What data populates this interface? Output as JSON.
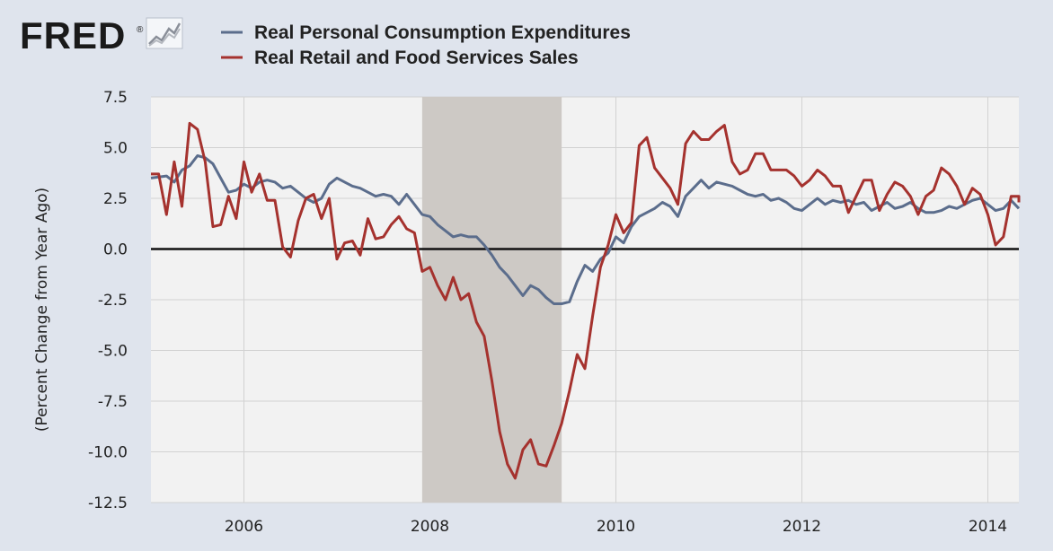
{
  "logo": {
    "text": "FRED",
    "trademark": "®",
    "icon": "fred-chart-icon"
  },
  "chart_data": {
    "type": "line",
    "ylabel": "(Percent Change from Year Ago)",
    "xlim": [
      "2005-01",
      "2014-05"
    ],
    "ylim": [
      -12.5,
      7.5
    ],
    "yticks": [
      7.5,
      5.0,
      2.5,
      0.0,
      -2.5,
      -5.0,
      -7.5,
      -10.0,
      -12.5
    ],
    "ytick_labels": [
      "7.5",
      "5.0",
      "2.5",
      "0.0",
      "-2.5",
      "-5.0",
      "-7.5",
      "-10.0",
      "-12.5"
    ],
    "xticks": [
      "2006-01",
      "2008-01",
      "2010-01",
      "2012-01",
      "2014-01"
    ],
    "xtick_labels": [
      "2006",
      "2008",
      "2010",
      "2012",
      "2014"
    ],
    "grid": true,
    "zero_line": true,
    "recession": {
      "start": "2007-12",
      "end": "2009-06",
      "color": "#cdc9c5"
    },
    "legend_position": "top",
    "series": [
      {
        "name": "Real Personal Consumption Expenditures",
        "color": "#5b6d8c",
        "points": [
          [
            "2005-01",
            3.5
          ],
          [
            "2005-03",
            3.6
          ],
          [
            "2005-04",
            3.3
          ],
          [
            "2005-05",
            3.9
          ],
          [
            "2005-06",
            4.1
          ],
          [
            "2005-07",
            4.6
          ],
          [
            "2005-08",
            4.5
          ],
          [
            "2005-09",
            4.2
          ],
          [
            "2005-10",
            3.5
          ],
          [
            "2005-11",
            2.8
          ],
          [
            "2005-12",
            2.9
          ],
          [
            "2006-01",
            3.2
          ],
          [
            "2006-02",
            3.0
          ],
          [
            "2006-03",
            3.3
          ],
          [
            "2006-04",
            3.4
          ],
          [
            "2006-05",
            3.3
          ],
          [
            "2006-06",
            3.0
          ],
          [
            "2006-07",
            3.1
          ],
          [
            "2006-08",
            2.8
          ],
          [
            "2006-09",
            2.5
          ],
          [
            "2006-10",
            2.3
          ],
          [
            "2006-11",
            2.5
          ],
          [
            "2006-12",
            3.2
          ],
          [
            "2007-01",
            3.5
          ],
          [
            "2007-02",
            3.3
          ],
          [
            "2007-03",
            3.1
          ],
          [
            "2007-04",
            3.0
          ],
          [
            "2007-05",
            2.8
          ],
          [
            "2007-06",
            2.6
          ],
          [
            "2007-07",
            2.7
          ],
          [
            "2007-08",
            2.6
          ],
          [
            "2007-09",
            2.2
          ],
          [
            "2007-10",
            2.7
          ],
          [
            "2007-11",
            2.2
          ],
          [
            "2007-12",
            1.7
          ],
          [
            "2008-01",
            1.6
          ],
          [
            "2008-02",
            1.2
          ],
          [
            "2008-03",
            0.9
          ],
          [
            "2008-04",
            0.6
          ],
          [
            "2008-05",
            0.7
          ],
          [
            "2008-06",
            0.6
          ],
          [
            "2008-07",
            0.6
          ],
          [
            "2008-08",
            0.2
          ],
          [
            "2008-09",
            -0.3
          ],
          [
            "2008-10",
            -0.9
          ],
          [
            "2008-11",
            -1.3
          ],
          [
            "2008-12",
            -1.8
          ],
          [
            "2009-01",
            -2.3
          ],
          [
            "2009-02",
            -1.8
          ],
          [
            "2009-03",
            -2.0
          ],
          [
            "2009-04",
            -2.4
          ],
          [
            "2009-05",
            -2.7
          ],
          [
            "2009-06",
            -2.7
          ],
          [
            "2009-07",
            -2.6
          ],
          [
            "2009-08",
            -1.6
          ],
          [
            "2009-09",
            -0.8
          ],
          [
            "2009-10",
            -1.1
          ],
          [
            "2009-11",
            -0.5
          ],
          [
            "2009-12",
            -0.2
          ],
          [
            "2010-01",
            0.6
          ],
          [
            "2010-02",
            0.3
          ],
          [
            "2010-03",
            1.1
          ],
          [
            "2010-04",
            1.6
          ],
          [
            "2010-05",
            1.8
          ],
          [
            "2010-06",
            2.0
          ],
          [
            "2010-07",
            2.3
          ],
          [
            "2010-08",
            2.1
          ],
          [
            "2010-09",
            1.6
          ],
          [
            "2010-10",
            2.6
          ],
          [
            "2010-11",
            3.0
          ],
          [
            "2010-12",
            3.4
          ],
          [
            "2011-01",
            3.0
          ],
          [
            "2011-02",
            3.3
          ],
          [
            "2011-03",
            3.2
          ],
          [
            "2011-04",
            3.1
          ],
          [
            "2011-05",
            2.9
          ],
          [
            "2011-06",
            2.7
          ],
          [
            "2011-07",
            2.6
          ],
          [
            "2011-08",
            2.7
          ],
          [
            "2011-09",
            2.4
          ],
          [
            "2011-10",
            2.5
          ],
          [
            "2011-11",
            2.3
          ],
          [
            "2011-12",
            2.0
          ],
          [
            "2012-01",
            1.9
          ],
          [
            "2012-02",
            2.2
          ],
          [
            "2012-03",
            2.5
          ],
          [
            "2012-04",
            2.2
          ],
          [
            "2012-05",
            2.4
          ],
          [
            "2012-06",
            2.3
          ],
          [
            "2012-07",
            2.4
          ],
          [
            "2012-08",
            2.2
          ],
          [
            "2012-09",
            2.3
          ],
          [
            "2012-10",
            1.9
          ],
          [
            "2012-11",
            2.1
          ],
          [
            "2012-12",
            2.3
          ],
          [
            "2013-01",
            2.0
          ],
          [
            "2013-02",
            2.1
          ],
          [
            "2013-03",
            2.3
          ],
          [
            "2013-04",
            2.0
          ],
          [
            "2013-05",
            1.8
          ],
          [
            "2013-06",
            1.8
          ],
          [
            "2013-07",
            1.9
          ],
          [
            "2013-08",
            2.1
          ],
          [
            "2013-09",
            2.0
          ],
          [
            "2013-10",
            2.2
          ],
          [
            "2013-11",
            2.4
          ],
          [
            "2013-12",
            2.5
          ],
          [
            "2014-01",
            2.2
          ],
          [
            "2014-02",
            1.9
          ],
          [
            "2014-03",
            2.0
          ],
          [
            "2014-04",
            2.4
          ],
          [
            "2014-05",
            2.0
          ]
        ]
      },
      {
        "name": "Real Retail and Food Services Sales",
        "color": "#a5322e",
        "points": [
          [
            "2005-01",
            3.7
          ],
          [
            "2005-02",
            3.7
          ],
          [
            "2005-03",
            1.7
          ],
          [
            "2005-04",
            4.3
          ],
          [
            "2005-05",
            2.1
          ],
          [
            "2005-06",
            6.2
          ],
          [
            "2005-07",
            5.9
          ],
          [
            "2005-08",
            4.3
          ],
          [
            "2005-09",
            1.1
          ],
          [
            "2005-10",
            1.2
          ],
          [
            "2005-11",
            2.6
          ],
          [
            "2005-12",
            1.5
          ],
          [
            "2006-01",
            4.3
          ],
          [
            "2006-02",
            2.8
          ],
          [
            "2006-03",
            3.7
          ],
          [
            "2006-04",
            2.4
          ],
          [
            "2006-05",
            2.4
          ],
          [
            "2006-06",
            0.1
          ],
          [
            "2006-07",
            -0.4
          ],
          [
            "2006-08",
            1.4
          ],
          [
            "2006-09",
            2.5
          ],
          [
            "2006-10",
            2.7
          ],
          [
            "2006-11",
            1.5
          ],
          [
            "2006-12",
            2.5
          ],
          [
            "2007-01",
            -0.5
          ],
          [
            "2007-02",
            0.3
          ],
          [
            "2007-03",
            0.4
          ],
          [
            "2007-04",
            -0.3
          ],
          [
            "2007-05",
            1.5
          ],
          [
            "2007-06",
            0.5
          ],
          [
            "2007-07",
            0.6
          ],
          [
            "2007-08",
            1.2
          ],
          [
            "2007-09",
            1.6
          ],
          [
            "2007-10",
            1.0
          ],
          [
            "2007-11",
            0.8
          ],
          [
            "2007-12",
            -1.1
          ],
          [
            "2008-01",
            -0.9
          ],
          [
            "2008-02",
            -1.8
          ],
          [
            "2008-03",
            -2.5
          ],
          [
            "2008-04",
            -1.4
          ],
          [
            "2008-05",
            -2.5
          ],
          [
            "2008-06",
            -2.2
          ],
          [
            "2008-07",
            -3.6
          ],
          [
            "2008-08",
            -4.3
          ],
          [
            "2008-09",
            -6.5
          ],
          [
            "2008-10",
            -9.0
          ],
          [
            "2008-11",
            -10.6
          ],
          [
            "2008-12",
            -11.3
          ],
          [
            "2009-01",
            -9.9
          ],
          [
            "2009-02",
            -9.4
          ],
          [
            "2009-03",
            -10.6
          ],
          [
            "2009-04",
            -10.7
          ],
          [
            "2009-05",
            -9.7
          ],
          [
            "2009-06",
            -8.6
          ],
          [
            "2009-07",
            -7.0
          ],
          [
            "2009-08",
            -5.2
          ],
          [
            "2009-09",
            -5.9
          ],
          [
            "2009-10",
            -3.3
          ],
          [
            "2009-11",
            -0.9
          ],
          [
            "2009-12",
            0.2
          ],
          [
            "2010-01",
            1.7
          ],
          [
            "2010-02",
            0.8
          ],
          [
            "2010-03",
            1.3
          ],
          [
            "2010-04",
            5.1
          ],
          [
            "2010-05",
            5.5
          ],
          [
            "2010-06",
            4.0
          ],
          [
            "2010-07",
            3.5
          ],
          [
            "2010-08",
            3.0
          ],
          [
            "2010-09",
            2.2
          ],
          [
            "2010-10",
            5.2
          ],
          [
            "2010-11",
            5.8
          ],
          [
            "2010-12",
            5.4
          ],
          [
            "2011-01",
            5.4
          ],
          [
            "2011-02",
            5.8
          ],
          [
            "2011-03",
            6.1
          ],
          [
            "2011-04",
            4.3
          ],
          [
            "2011-05",
            3.7
          ],
          [
            "2011-06",
            3.9
          ],
          [
            "2011-07",
            4.7
          ],
          [
            "2011-08",
            4.7
          ],
          [
            "2011-09",
            3.9
          ],
          [
            "2011-10",
            3.9
          ],
          [
            "2011-11",
            3.9
          ],
          [
            "2011-12",
            3.6
          ],
          [
            "2012-01",
            3.1
          ],
          [
            "2012-02",
            3.4
          ],
          [
            "2012-03",
            3.9
          ],
          [
            "2012-04",
            3.6
          ],
          [
            "2012-05",
            3.1
          ],
          [
            "2012-06",
            3.1
          ],
          [
            "2012-07",
            1.8
          ],
          [
            "2012-08",
            2.6
          ],
          [
            "2012-09",
            3.4
          ],
          [
            "2012-10",
            3.4
          ],
          [
            "2012-11",
            1.9
          ],
          [
            "2012-12",
            2.7
          ],
          [
            "2013-01",
            3.3
          ],
          [
            "2013-02",
            3.1
          ],
          [
            "2013-03",
            2.6
          ],
          [
            "2013-04",
            1.7
          ],
          [
            "2013-05",
            2.6
          ],
          [
            "2013-06",
            2.9
          ],
          [
            "2013-07",
            4.0
          ],
          [
            "2013-08",
            3.7
          ],
          [
            "2013-09",
            3.1
          ],
          [
            "2013-10",
            2.2
          ],
          [
            "2013-11",
            3.0
          ],
          [
            "2013-12",
            2.7
          ],
          [
            "2014-01",
            1.7
          ],
          [
            "2014-02",
            0.2
          ],
          [
            "2014-03",
            0.6
          ],
          [
            "2014-04",
            2.6
          ],
          [
            "2014-05",
            2.6
          ],
          [
            "2014-06",
            2.3
          ]
        ]
      }
    ]
  }
}
